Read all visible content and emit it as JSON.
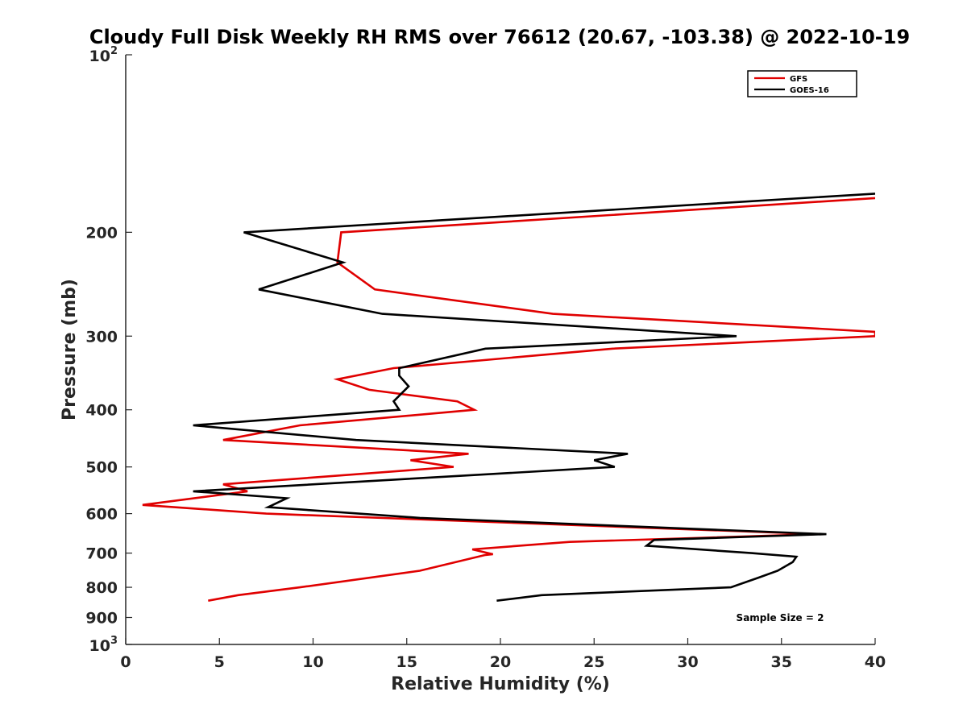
{
  "chart_data": {
    "type": "line",
    "title": "Cloudy Full Disk Weekly RH RMS over 76612 (20.67, -103.38) @ 2022-10-19",
    "xlabel": "Relative Humidity (%)",
    "ylabel": "Pressure (mb)",
    "xlim": [
      0,
      40
    ],
    "ylim": [
      100,
      1000
    ],
    "yscale": "log",
    "y_reversed": true,
    "x_ticks": [
      0,
      5,
      10,
      15,
      20,
      25,
      30,
      35,
      40
    ],
    "x_tick_labels": [
      "0",
      "5",
      "10",
      "15",
      "20",
      "25",
      "30",
      "35",
      "40"
    ],
    "y_ticks": [
      200,
      300,
      400,
      500,
      600,
      700,
      800,
      900
    ],
    "y_tick_labels": [
      "200",
      "300",
      "400",
      "500",
      "600",
      "700",
      "800",
      "900"
    ],
    "y_edge_labels": [
      {
        "value": 100,
        "base": "10",
        "exp": "2"
      },
      {
        "value": 1000,
        "base": "10",
        "exp": "3"
      }
    ],
    "legend": {
      "position": "top-right",
      "entries": [
        "GFS",
        "GOES-16"
      ]
    },
    "annotation": "Sample Size = 2",
    "series": [
      {
        "name": "GFS",
        "color": "#e00000",
        "points": [
          [
            40,
            175
          ],
          [
            11.5,
            200
          ],
          [
            11.3,
            225
          ],
          [
            13.3,
            250
          ],
          [
            22.8,
            275
          ],
          [
            40,
            295
          ],
          [
            40,
            300
          ],
          [
            26,
            315
          ],
          [
            14.3,
            340
          ],
          [
            11.3,
            355
          ],
          [
            13,
            370
          ],
          [
            17.7,
            387
          ],
          [
            18.6,
            400
          ],
          [
            9.3,
            425
          ],
          [
            5.2,
            450
          ],
          [
            18.3,
            475
          ],
          [
            15.2,
            487
          ],
          [
            17.5,
            500
          ],
          [
            5.2,
            535
          ],
          [
            6.5,
            550
          ],
          [
            0.9,
            580
          ],
          [
            7.5,
            600
          ],
          [
            37,
            650
          ],
          [
            23.7,
            670
          ],
          [
            18.5,
            690
          ],
          [
            19.6,
            703
          ],
          [
            19.2,
            705
          ],
          [
            15.7,
            750
          ],
          [
            9.3,
            800
          ],
          [
            6,
            825
          ],
          [
            4.4,
            843
          ]
        ]
      },
      {
        "name": "GOES-16",
        "color": "#000000",
        "points": [
          [
            40,
            172
          ],
          [
            6.3,
            200
          ],
          [
            11.6,
            225
          ],
          [
            7.1,
            250
          ],
          [
            13.7,
            275
          ],
          [
            32.6,
            300
          ],
          [
            19.2,
            315
          ],
          [
            14.6,
            340
          ],
          [
            14.6,
            350
          ],
          [
            15.1,
            365
          ],
          [
            14.3,
            387
          ],
          [
            14.6,
            400
          ],
          [
            3.6,
            425
          ],
          [
            12.3,
            450
          ],
          [
            26.8,
            475
          ],
          [
            25,
            487
          ],
          [
            26.1,
            500
          ],
          [
            3.6,
            550
          ],
          [
            8.6,
            565
          ],
          [
            7.6,
            585
          ],
          [
            15.7,
            610
          ],
          [
            37.4,
            650
          ],
          [
            28.2,
            665
          ],
          [
            27.8,
            680
          ],
          [
            33.4,
            700
          ],
          [
            35.8,
            710
          ],
          [
            35.6,
            725
          ],
          [
            34.8,
            750
          ],
          [
            33.8,
            770
          ],
          [
            32.3,
            800
          ],
          [
            22.2,
            825
          ],
          [
            19.8,
            843
          ]
        ]
      }
    ]
  }
}
